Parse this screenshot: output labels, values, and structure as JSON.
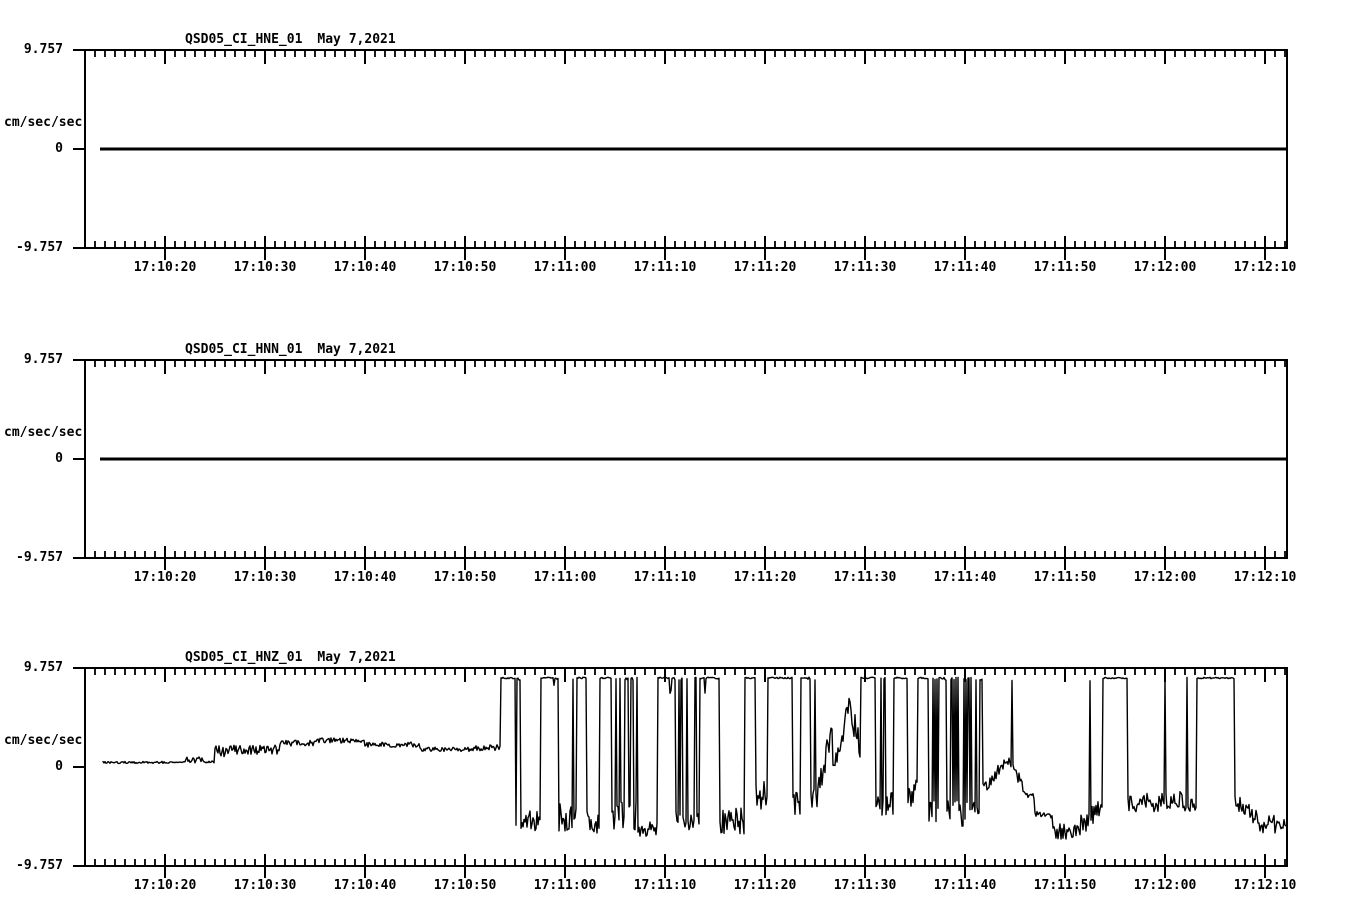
{
  "page": {
    "background": "#ffffff",
    "foreground": "#000000",
    "station": "QSD05_CI",
    "date": "May 7,2021"
  },
  "chart_data": [
    {
      "type": "line",
      "title": {
        "channel": "QSD05_CI_HNE_01",
        "date": "May 7,2021"
      },
      "y_axis": {
        "unit": "cm/sec/sec",
        "max": 9.757,
        "min": -9.757,
        "tick_labels": [
          "9.757",
          "0",
          "-9.757"
        ]
      },
      "x_axis": {
        "start": "17:10:12",
        "end": "17:12:12",
        "major_tick_s": 10,
        "minor_tick_s": 1,
        "tick_labels": [
          "17:10:20",
          "17:10:30",
          "17:10:40",
          "17:10:50",
          "17:11:00",
          "17:11:10",
          "17:11:20",
          "17:11:30",
          "17:11:40",
          "17:11:50",
          "17:12:00",
          "17:12:10"
        ]
      },
      "trace": {
        "kind": "constant",
        "value": 0,
        "t_start": 1.5,
        "t_end": 120.2,
        "stroke_px": 3
      }
    },
    {
      "type": "line",
      "title": {
        "channel": "QSD05_CI_HNN_01",
        "date": "May 7,2021"
      },
      "y_axis": {
        "unit": "cm/sec/sec",
        "max": 9.757,
        "min": -9.757,
        "tick_labels": [
          "9.757",
          "0",
          "-9.757"
        ]
      },
      "x_axis": {
        "start": "17:10:12",
        "end": "17:12:12",
        "major_tick_s": 10,
        "minor_tick_s": 1,
        "tick_labels": [
          "17:10:20",
          "17:10:30",
          "17:10:40",
          "17:10:50",
          "17:11:00",
          "17:11:10",
          "17:11:20",
          "17:11:30",
          "17:11:40",
          "17:11:50",
          "17:12:00",
          "17:12:10"
        ]
      },
      "trace": {
        "kind": "constant",
        "value": 0,
        "t_start": 1.5,
        "t_end": 120.2,
        "stroke_px": 3
      }
    },
    {
      "type": "line",
      "title": {
        "channel": "QSD05_CI_HNZ_01",
        "date": "May 7,2021"
      },
      "y_axis": {
        "unit": "cm/sec/sec",
        "max": 9.757,
        "min": -9.757,
        "tick_labels": [
          "9.757",
          "0",
          "-9.757"
        ]
      },
      "x_axis": {
        "start": "17:10:12",
        "end": "17:12:12",
        "major_tick_s": 10,
        "minor_tick_s": 1,
        "tick_labels": [
          "17:10:20",
          "17:10:30",
          "17:10:40",
          "17:10:50",
          "17:11:00",
          "17:11:10",
          "17:11:20",
          "17:11:30",
          "17:11:40",
          "17:11:50",
          "17:12:00",
          "17:12:10"
        ]
      },
      "trace": {
        "kind": "segments",
        "clip_level": 8.85,
        "sample_hz": 10,
        "seed": 20210507,
        "stroke_px": 1.4,
        "segments": [
          {
            "t0": 1.8,
            "t1": 10.0,
            "mode": "quiet",
            "base": 0.45,
            "amp": 0.1
          },
          {
            "t0": 10.0,
            "t1": 11.0,
            "mode": "noisy",
            "base": 0.9,
            "amp": 0.45
          },
          {
            "t0": 11.0,
            "t1": 12.0,
            "mode": "noisy",
            "base": 0.7,
            "amp": 0.3
          },
          {
            "t0": 12.0,
            "t1": 13.0,
            "mode": "quiet",
            "base": 0.55,
            "amp": 0.15
          },
          {
            "t0": 13.0,
            "t1": 14.6,
            "mode": "noisy",
            "base": 1.5,
            "amp": 0.6
          },
          {
            "t0": 14.6,
            "t1": 19.5,
            "mode": "noisy",
            "base": 1.7,
            "amp": 0.45
          },
          {
            "t0": 19.5,
            "t1": 23.0,
            "mode": "noisy",
            "base": 2.35,
            "amp": 0.3
          },
          {
            "t0": 23.0,
            "t1": 28.0,
            "mode": "noisy",
            "base": 2.6,
            "amp": 0.28
          },
          {
            "t0": 28.0,
            "t1": 33.5,
            "mode": "noisy",
            "base": 2.2,
            "amp": 0.26
          },
          {
            "t0": 33.5,
            "t1": 38.5,
            "mode": "noisy",
            "base": 1.75,
            "amp": 0.22
          },
          {
            "t0": 38.5,
            "t1": 41.6,
            "mode": "noisy",
            "base": 1.9,
            "amp": 0.3
          },
          {
            "t0": 41.6,
            "t1": 43.4,
            "mode": "cliptop",
            "spikeDown": 0.05,
            "spikeLevel": -5
          },
          {
            "t0": 43.4,
            "t1": 45.6,
            "mode": "chaos",
            "base": -5.5,
            "amp": 1.2,
            "upP": 0.06,
            "downP": 0.5
          },
          {
            "t0": 45.6,
            "t1": 47.2,
            "mode": "cliptop",
            "gaps": true
          },
          {
            "t0": 47.2,
            "t1": 49.2,
            "mode": "chaos",
            "base": -5.0,
            "amp": 1.4,
            "upP": 0.06,
            "downP": 0.5
          },
          {
            "t0": 49.2,
            "t1": 50.1,
            "mode": "cliptop"
          },
          {
            "t0": 50.1,
            "t1": 51.5,
            "mode": "chaos",
            "base": -5.6,
            "amp": 1.3,
            "upP": 0.05,
            "downP": 0.5
          },
          {
            "t0": 51.5,
            "t1": 52.6,
            "mode": "cliptop"
          },
          {
            "t0": 52.6,
            "t1": 55.3,
            "mode": "dense",
            "base": -4.8,
            "amp": 1.5,
            "upP": 0.45,
            "downP": 0.5
          },
          {
            "t0": 55.3,
            "t1": 57.3,
            "mode": "noisy",
            "base": -6.2,
            "amp": 0.9
          },
          {
            "t0": 57.3,
            "t1": 58.8,
            "mode": "cliptop",
            "gaps": true
          },
          {
            "t0": 58.8,
            "t1": 61.5,
            "mode": "chaos",
            "base": -5.0,
            "amp": 1.2,
            "upP": 0.08,
            "downP": 0.45
          },
          {
            "t0": 61.5,
            "t1": 63.3,
            "mode": "cliptop",
            "gaps": true
          },
          {
            "t0": 63.3,
            "t1": 66.0,
            "mode": "chaos",
            "base": -5.3,
            "amp": 1.3,
            "upP": 0.1,
            "downP": 0.45
          },
          {
            "t0": 66.0,
            "t1": 67.1,
            "mode": "cliptop"
          },
          {
            "t0": 67.1,
            "t1": 68.3,
            "mode": "noisy",
            "base": -3.0,
            "amp": 1.6
          },
          {
            "t0": 68.3,
            "t1": 70.8,
            "mode": "cliptop"
          },
          {
            "t0": 70.8,
            "t1": 71.6,
            "mode": "noisy",
            "base": -3.6,
            "amp": 1.1
          },
          {
            "t0": 71.6,
            "t1": 72.3,
            "mode": "cliptop"
          },
          {
            "t0": 72.3,
            "t1": 73.1,
            "mode": "chaos",
            "base": -3.2,
            "amp": 1.4,
            "upP": 0.08,
            "downP": 0.5
          },
          {
            "t0": 73.1,
            "t1": 74.8,
            "mode": "ramp",
            "base": -3.5,
            "baseEnd": 4.5,
            "amp": 1.3
          },
          {
            "t0": 74.8,
            "t1": 75.1,
            "mode": "noisy",
            "base": -0.3,
            "amp": 0.5
          },
          {
            "t0": 75.1,
            "t1": 76.4,
            "mode": "ramp",
            "base": 0.5,
            "baseEnd": 6.2,
            "amp": 1.1
          },
          {
            "t0": 76.4,
            "t1": 77.6,
            "mode": "ramp",
            "base": 6.0,
            "baseEnd": 2.0,
            "amp": 1.4,
            "spikeUp": 0.12
          },
          {
            "t0": 77.6,
            "t1": 79.0,
            "mode": "cliptop"
          },
          {
            "t0": 79.0,
            "t1": 80.9,
            "mode": "chaos",
            "base": -3.8,
            "amp": 1.4,
            "upP": 0.07,
            "downP": 0.5
          },
          {
            "t0": 80.9,
            "t1": 82.3,
            "mode": "cliptop",
            "gaps": true
          },
          {
            "t0": 82.3,
            "t1": 83.3,
            "mode": "noisy",
            "base": -2.6,
            "amp": 1.3
          },
          {
            "t0": 83.3,
            "t1": 84.3,
            "mode": "cliptop"
          },
          {
            "t0": 84.3,
            "t1": 89.8,
            "mode": "dense",
            "base": -4.6,
            "amp": 1.4,
            "upP": 0.5,
            "downP": 0.5
          },
          {
            "t0": 89.8,
            "t1": 92.3,
            "mode": "ramp",
            "base": -2.2,
            "baseEnd": 0.8,
            "amp": 0.6
          },
          {
            "t0": 92.3,
            "t1": 94.3,
            "mode": "ramp",
            "base": 0.8,
            "baseEnd": -2.8,
            "amp": 0.6,
            "spikeUp": 0.02
          },
          {
            "t0": 94.3,
            "t1": 95.0,
            "mode": "noisy",
            "base": -3.2,
            "amp": 0.6,
            "spikeUp": 0.18
          },
          {
            "t0": 95.0,
            "t1": 96.8,
            "mode": "quiet",
            "base": -4.7,
            "amp": 0.35
          },
          {
            "t0": 96.8,
            "t1": 99.5,
            "mode": "noisy",
            "base": -6.3,
            "amp": 0.8
          },
          {
            "t0": 99.5,
            "t1": 101.8,
            "mode": "ramp",
            "base": -5.8,
            "baseEnd": -4.0,
            "amp": 1.0,
            "spikeUp": 0.06
          },
          {
            "t0": 101.8,
            "t1": 104.3,
            "mode": "cliptop"
          },
          {
            "t0": 104.3,
            "t1": 111.2,
            "mode": "noisy",
            "base": -3.4,
            "amp": 1.0,
            "spikeUp": 0.02
          },
          {
            "t0": 111.2,
            "t1": 115.0,
            "mode": "cliptop"
          },
          {
            "t0": 115.0,
            "t1": 117.5,
            "mode": "ramp",
            "base": -3.3,
            "baseEnd": -5.5,
            "amp": 0.9
          },
          {
            "t0": 117.5,
            "t1": 120.2,
            "mode": "noisy",
            "base": -5.6,
            "amp": 0.9
          }
        ]
      }
    }
  ]
}
